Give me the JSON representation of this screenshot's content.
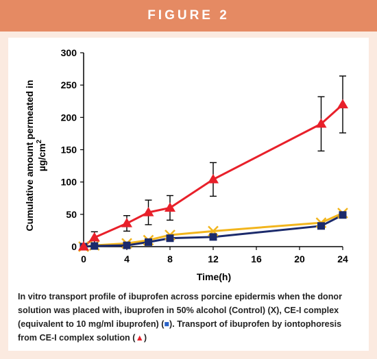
{
  "header": {
    "title": "FIGURE 2"
  },
  "caption": {
    "part1": "In vitro transport profile of ibuprofen across porcine epidermis when the donor solution was placed with, ibuprofen in 50% alcohol (Control) (X), CE-I complex (equivalent to 10 mg/ml ibuprofen) (",
    "square_symbol": "■",
    "part2": ").  Transport of ibuprofen by iontophoresis from CE-I complex solution (",
    "triangle_symbol": "▲",
    "part3": ")"
  },
  "chart_data": {
    "type": "line",
    "xlabel": "Time(h)",
    "ylabel_line1": "Cumulative amount permeated in",
    "ylabel_line2": "µg/cm",
    "ylabel_sup": "2",
    "xlim": [
      0,
      24
    ],
    "ylim": [
      0,
      300
    ],
    "xticks": [
      0,
      4,
      8,
      12,
      16,
      20,
      24
    ],
    "yticks": [
      0,
      50,
      100,
      150,
      200,
      250,
      300
    ],
    "grid": false,
    "series": [
      {
        "marker": "x",
        "color": "#f2b51d",
        "marker_color": "#f2b51d",
        "x": [
          0,
          1,
          4,
          6,
          8,
          12,
          22,
          24
        ],
        "y": [
          0,
          2,
          5,
          10,
          18,
          24,
          37,
          52
        ],
        "err": [
          0,
          0,
          0,
          0,
          0,
          0,
          0,
          0
        ]
      },
      {
        "marker": "square",
        "color": "#1b2a6b",
        "marker_color": "#1b2a6b",
        "x": [
          0,
          1,
          4,
          6,
          8,
          12,
          22,
          24
        ],
        "y": [
          0,
          1,
          2,
          7,
          13,
          15,
          32,
          49
        ],
        "err": [
          0,
          0,
          0,
          0,
          0,
          0,
          0,
          0
        ]
      },
      {
        "marker": "triangle",
        "color": "#e8202a",
        "marker_color": "#e8202a",
        "x": [
          0,
          1,
          4,
          6,
          8,
          12,
          22,
          24
        ],
        "y": [
          0,
          14,
          36,
          53,
          60,
          104,
          190,
          220
        ],
        "err": [
          0,
          9,
          12,
          19,
          19,
          26,
          42,
          44
        ]
      }
    ]
  }
}
